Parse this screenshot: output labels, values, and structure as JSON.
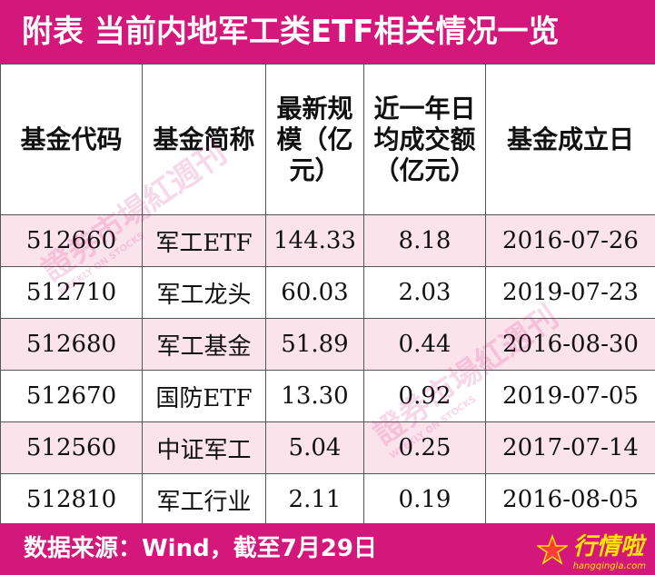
{
  "title": "附表  当前内地军工类ETF相关情况一览",
  "table": {
    "headers": [
      "基金代码",
      "基金简称",
      "最新规模（亿元）",
      "近一年日均成交额（亿元）",
      "基金成立日"
    ],
    "rows": [
      [
        "512660",
        "军工ETF",
        "144.33",
        "8.18",
        "2016-07-26"
      ],
      [
        "512710",
        "军工龙头",
        "60.03",
        "2.03",
        "2019-07-23"
      ],
      [
        "512680",
        "军工基金",
        "51.89",
        "0.44",
        "2016-08-30"
      ],
      [
        "512670",
        "国防ETF",
        "13.30",
        "0.92",
        "2019-07-05"
      ],
      [
        "512560",
        "中证军工",
        "5.04",
        "0.25",
        "2017-07-14"
      ],
      [
        "512810",
        "军工行业",
        "2.11",
        "0.19",
        "2016-08-05"
      ]
    ]
  },
  "footer": "数据来源：Wind，截至7月29日",
  "watermark": {
    "text": "證券市場紅週刊",
    "sub": "WEEKLY ON STOCKS"
  },
  "logo": {
    "text": "行情啦",
    "sub": "hangqingla.com"
  },
  "colors": {
    "brand": "#d4177a",
    "row_alt": "#fbe3ec",
    "logo": "#ffe600"
  }
}
